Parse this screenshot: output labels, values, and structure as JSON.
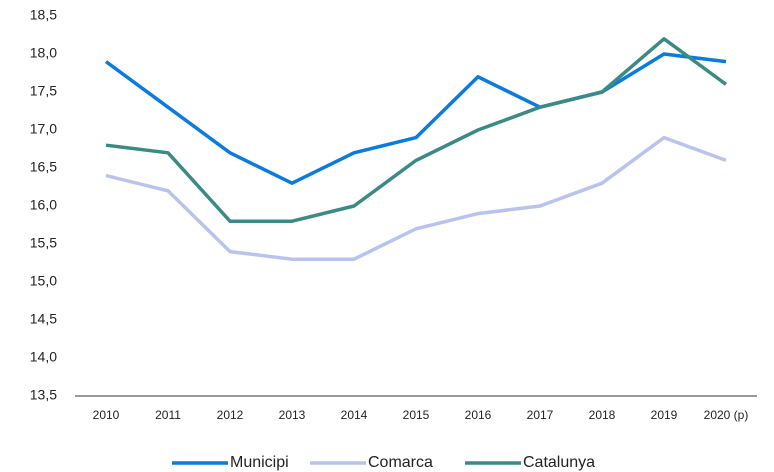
{
  "chart_data": {
    "type": "line",
    "categories": [
      "2010",
      "2011",
      "2012",
      "2013",
      "2014",
      "2015",
      "2016",
      "2017",
      "2018",
      "2019",
      "2020 (p)"
    ],
    "series": [
      {
        "name": "Municipi",
        "color": "#0a7be0",
        "values": [
          17.9,
          17.3,
          16.7,
          16.3,
          16.7,
          16.9,
          17.7,
          17.3,
          17.5,
          18.0,
          17.9
        ]
      },
      {
        "name": "Comarca",
        "color": "#b8c4ee",
        "values": [
          16.4,
          16.2,
          15.4,
          15.3,
          15.3,
          15.7,
          15.9,
          16.0,
          16.3,
          16.9,
          16.6
        ]
      },
      {
        "name": "Catalunya",
        "color": "#3a8a86",
        "values": [
          16.8,
          16.7,
          15.8,
          15.8,
          16.0,
          16.6,
          17.0,
          17.3,
          17.5,
          18.2,
          17.6
        ]
      }
    ],
    "ylim": [
      13.5,
      18.5
    ],
    "yticks": [
      {
        "value": 13.5,
        "label": "13,5"
      },
      {
        "value": 14,
        "label": "14,0"
      },
      {
        "value": 14.5,
        "label": "14,5"
      },
      {
        "value": 15,
        "label": "15,0"
      },
      {
        "value": 15.5,
        "label": "15,5"
      },
      {
        "value": 16,
        "label": "16,0"
      },
      {
        "value": 16.5,
        "label": "16,5"
      },
      {
        "value": 17,
        "label": "17,0"
      },
      {
        "value": 17.5,
        "label": "17,5"
      },
      {
        "value": 18,
        "label": "18,0"
      },
      {
        "value": 18.5,
        "label": "18,5"
      }
    ],
    "grid": false,
    "legend": "bottom"
  }
}
